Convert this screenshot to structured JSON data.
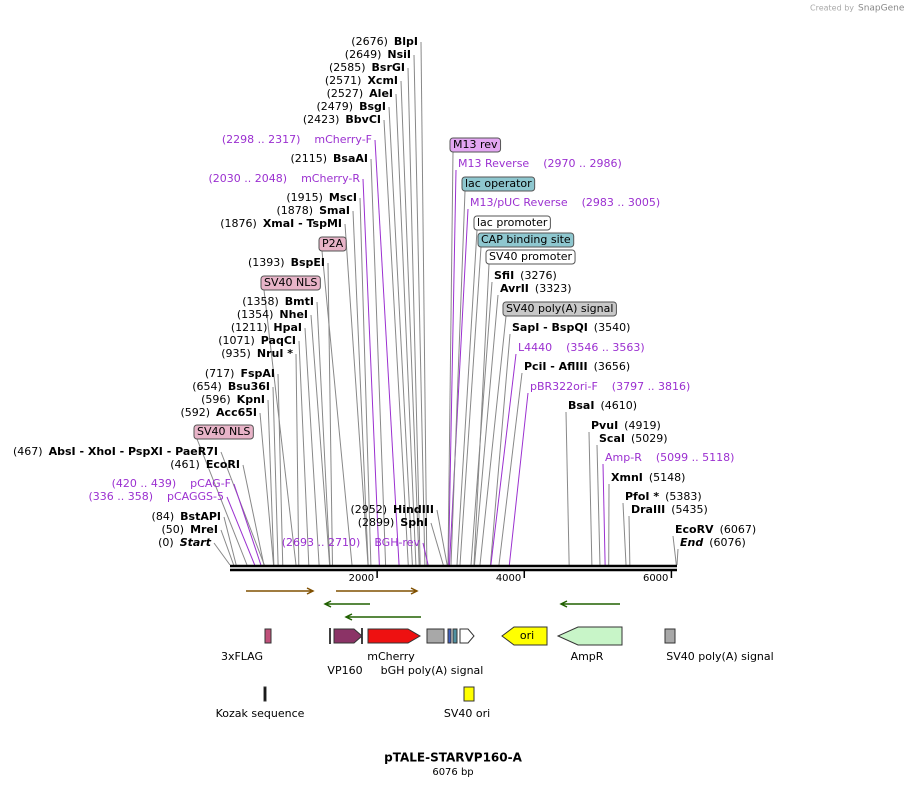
{
  "credit": {
    "prefix": "Created by",
    "brand": "SnapGene"
  },
  "title": "pTALE-STARVP160-A",
  "subtitle": "6076 bp",
  "scale_ticks": [
    2000,
    4000,
    6000
  ],
  "sites": [
    {
      "pos": "(2676)",
      "name": "BlpI"
    },
    {
      "pos": "(2649)",
      "name": "NsiI"
    },
    {
      "pos": "(2585)",
      "name": "BsrGI"
    },
    {
      "pos": "(2571)",
      "name": "XcmI"
    },
    {
      "pos": "(2527)",
      "name": "AleI"
    },
    {
      "pos": "(2479)",
      "name": "BsgI"
    },
    {
      "pos": "(2423)",
      "name": "BbvCI"
    },
    {
      "pos": "(2115)",
      "name": "BsaAI"
    },
    {
      "pos": "(1915)",
      "name": "MscI"
    },
    {
      "pos": "(1878)",
      "name": "SmaI"
    },
    {
      "pos": "(1876)",
      "name": "XmaI   - TspMI"
    },
    {
      "pos": "(1393)",
      "name": "BspEI"
    },
    {
      "pos": "(1358)",
      "name": "BmtI"
    },
    {
      "pos": "(1354)",
      "name": "NheI"
    },
    {
      "pos": "(1211)",
      "name": "HpaI"
    },
    {
      "pos": "(1071)",
      "name": "PaqCI"
    },
    {
      "pos": "(935)",
      "name": "NruI *"
    },
    {
      "pos": "(717)",
      "name": "FspAI"
    },
    {
      "pos": "(654)",
      "name": "Bsu36I"
    },
    {
      "pos": "(596)",
      "name": "KpnI"
    },
    {
      "pos": "(592)",
      "name": "Acc65I"
    },
    {
      "pos": "(467)",
      "name": "AbsI   - XhoI   - PspXI   - PaeR7I"
    },
    {
      "pos": "(461)",
      "name": "EcoRI"
    },
    {
      "pos": "(84)",
      "name": "BstAPI"
    },
    {
      "pos": "(50)",
      "name": "MreI"
    },
    {
      "pos": "(0)",
      "name": "Start"
    },
    {
      "pos": "(2952)",
      "name": "HindIII"
    },
    {
      "pos": "(2899)",
      "name": "SphI"
    },
    {
      "pos": "(3276)",
      "name": "SfiI"
    },
    {
      "pos": "(3323)",
      "name": "AvrII"
    },
    {
      "pos": "(3540)",
      "name": "SapI   - BspQI"
    },
    {
      "pos": "(3656)",
      "name": "PciI   - AflIII"
    },
    {
      "pos": "(4610)",
      "name": "BsaI"
    },
    {
      "pos": "(4919)",
      "name": "PvuI"
    },
    {
      "pos": "(5029)",
      "name": "ScaI"
    },
    {
      "pos": "(5148)",
      "name": "XmnI"
    },
    {
      "pos": "(5383)",
      "name": "PfoI *"
    },
    {
      "pos": "(5435)",
      "name": "DraIII"
    },
    {
      "pos": "(6067)",
      "name": "EcoRV"
    },
    {
      "pos": "(6076)",
      "name": "End"
    }
  ],
  "primers": [
    {
      "pos": "(2298 .. 2317)",
      "name": "mCherry-F"
    },
    {
      "pos": "(2030 .. 2048)",
      "name": "mCherry-R"
    },
    {
      "pos": "(420 .. 439)",
      "name": "pCAG-F"
    },
    {
      "pos": "(336 .. 358)",
      "name": "pCAGGS-5"
    },
    {
      "pos": "(2693 .. 2710)",
      "name": "BGH-rev"
    },
    {
      "pos": "(2970 .. 2986)",
      "name": "M13 Reverse"
    },
    {
      "pos": "(2983 .. 3005)",
      "name": "M13/pUC Reverse"
    },
    {
      "pos": "(3546 .. 3563)",
      "name": "L4440"
    },
    {
      "pos": "(3797 .. 3816)",
      "name": "pBR322ori-F"
    },
    {
      "pos": "(5099 .. 5118)",
      "name": "Amp-R"
    }
  ],
  "boxes": [
    {
      "name": "P2A",
      "color": "#e8b4c8"
    },
    {
      "name": "SV40 NLS",
      "color": "#e8b4c8"
    },
    {
      "name": "SV40 NLS",
      "color": "#e8b4c8"
    },
    {
      "name": "M13 rev",
      "color": "#e3a6f2"
    },
    {
      "name": "lac operator",
      "color": "#8ec7cf"
    },
    {
      "name": "lac promoter",
      "color": "#ffffff"
    },
    {
      "name": "CAP binding site",
      "color": "#8ec7cf"
    },
    {
      "name": "SV40 promoter",
      "color": "#ffffff"
    },
    {
      "name": "SV40 poly(A) signal",
      "color": "#c8c8c8"
    }
  ],
  "features": [
    {
      "name": "3xFLAG",
      "color": "#c0507a"
    },
    {
      "name": "VP160",
      "color": "#8b3366"
    },
    {
      "name": "mCherry",
      "color": "#ee1111"
    },
    {
      "name": "bGH poly(A) signal",
      "color": "#a8a8a8"
    },
    {
      "name": "ori",
      "color": "#ffff00"
    },
    {
      "name": "AmpR",
      "color": "#c8f5c8"
    },
    {
      "name": "SV40 poly(A) signal",
      "color": "#a8a8a8"
    },
    {
      "name": "Kozak sequence",
      "color": "#000000"
    },
    {
      "name": "SV40 ori",
      "color": "#ffff00"
    }
  ]
}
